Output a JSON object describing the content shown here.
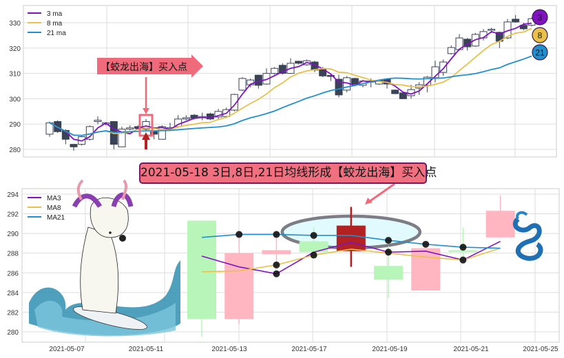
{
  "colors": {
    "ma3": "#8012c0",
    "ma8": "#e8c04a",
    "ma21": "#1f8fcf",
    "candle_down": "#3a4256",
    "candle_up_fill": "#ffffff",
    "highlight": "#ef6b7b",
    "highlight_arrow": "#b22222",
    "bull": "#b8f5b8",
    "bear": "#ffb6c1",
    "signal": "#b22222",
    "ellipse_stroke": "#7d7d85",
    "ellipse_fill": "#e0fafd",
    "banner_fill": "#f07080",
    "banner_border": "#6a1b6a"
  },
  "banner": {
    "text": "2021-05-18 3日,8日,21日均线形成【蛟龙出海】买入点"
  },
  "chart_data": [
    {
      "type": "candlestick",
      "title": "",
      "ylim": [
        277,
        336
      ],
      "yticks": [
        280,
        290,
        300,
        310,
        320,
        330
      ],
      "grid": true,
      "legend": {
        "placement": "top-left",
        "entries": [
          "3 ma",
          "8 ma",
          "21 ma"
        ]
      },
      "end_labels": [
        "3",
        "8",
        "21"
      ],
      "annotation": {
        "text": "【蛟龙出海】买入点",
        "candle_index": 12
      },
      "ma_windows": [
        3,
        8,
        21
      ],
      "ohlc": [
        [
          286,
          290.5,
          291,
          285
        ],
        [
          291,
          287,
          291.5,
          286.5
        ],
        [
          287.5,
          284,
          288,
          282
        ],
        [
          282,
          281,
          282.2,
          279.5
        ],
        [
          282,
          285,
          285.5,
          281.5
        ],
        [
          284,
          289,
          289.5,
          283.5
        ],
        [
          291,
          291.5,
          293,
          290
        ],
        [
          290,
          290.5,
          290.8,
          289.5
        ],
        [
          291,
          282,
          291.2,
          280
        ],
        [
          281,
          288,
          289,
          281
        ],
        [
          288,
          288.5,
          289.5,
          287.5
        ],
        [
          289,
          288.3,
          289.5,
          287.8
        ],
        [
          288,
          291,
          292,
          287
        ],
        [
          287,
          286,
          287.5,
          284
        ],
        [
          284,
          289,
          289.5,
          284
        ],
        [
          288.5,
          288.6,
          290.5,
          287.8
        ],
        [
          289,
          292,
          293.5,
          288.5
        ],
        [
          292,
          292.5,
          293.5,
          291.5
        ],
        [
          293.5,
          292.3,
          294,
          291.8
        ],
        [
          292.5,
          293,
          294.5,
          291.5
        ],
        [
          294,
          292,
          294.5,
          291.5
        ],
        [
          292.8,
          295,
          296,
          292
        ],
        [
          293,
          295.7,
          296.5,
          292.5
        ],
        [
          295.5,
          301.7,
          302,
          295
        ],
        [
          303.4,
          308,
          308.5,
          303
        ],
        [
          305.5,
          307.4,
          308,
          304.5
        ],
        [
          309.3,
          305.3,
          309.5,
          304
        ],
        [
          305.8,
          310,
          312,
          305.5
        ],
        [
          310,
          312,
          312.5,
          309.5
        ],
        [
          313.2,
          310,
          314,
          309.5
        ],
        [
          310,
          314,
          316,
          309.8
        ],
        [
          314.8,
          314,
          315,
          313.5
        ],
        [
          313.4,
          315,
          315.5,
          313
        ],
        [
          314.5,
          311.3,
          315,
          310.5
        ],
        [
          311.8,
          309,
          312.5,
          308.5
        ],
        [
          309.2,
          309,
          309.5,
          307
        ],
        [
          307.7,
          301.5,
          309.5,
          300.5
        ],
        [
          303.4,
          308.3,
          309,
          302.5
        ],
        [
          308,
          305.8,
          308.3,
          305.5
        ],
        [
          305.3,
          307,
          307.5,
          304.5
        ],
        [
          306.8,
          307,
          308,
          304.5
        ],
        [
          305.8,
          307.2,
          307.5,
          305.5
        ],
        [
          307.7,
          305.8,
          308,
          304
        ],
        [
          303.4,
          302,
          303.7,
          301.8
        ],
        [
          302.3,
          300,
          302.5,
          299.8
        ],
        [
          301.2,
          303.6,
          305.5,
          300
        ],
        [
          304.2,
          305.5,
          306.5,
          301.5
        ],
        [
          305.3,
          308.5,
          309,
          302.5
        ],
        [
          308.3,
          312.6,
          315,
          306.5
        ],
        [
          310.4,
          314.5,
          315.5,
          309
        ],
        [
          317.8,
          320.2,
          321,
          317.5
        ],
        [
          319.4,
          324,
          325.5,
          319
        ],
        [
          323.5,
          320.5,
          324,
          319
        ],
        [
          320.8,
          325.4,
          326,
          320.5
        ],
        [
          324,
          326.5,
          327.5,
          323
        ],
        [
          327.3,
          327.4,
          328,
          326
        ],
        [
          326.2,
          322.7,
          326.5,
          320
        ],
        [
          324,
          330.3,
          331.5,
          323.5
        ],
        [
          331.4,
          330.3,
          333,
          330
        ],
        [
          329,
          327.6,
          330,
          327
        ],
        [
          329,
          331.6,
          332,
          328.5
        ]
      ]
    },
    {
      "type": "candlestick",
      "title": "",
      "ylim": [
        279,
        294.6
      ],
      "yticks": [
        280,
        282,
        284,
        286,
        288,
        290,
        292,
        294
      ],
      "xticks": [
        "2021-05-07",
        "2021-05-11",
        "2021-05-13",
        "2021-05-17",
        "2021-05-19",
        "2021-05-21",
        "2021-05-25"
      ],
      "grid": true,
      "legend": {
        "placement": "top-left",
        "entries": [
          "MA3",
          "MA8",
          "MA21"
        ]
      },
      "candles": [
        {
          "top": 291.3,
          "bottom": 281.3,
          "high": 291.3,
          "low": 279.5,
          "color": "bull"
        },
        {
          "top": 288.0,
          "bottom": 281.3,
          "high": 289.9,
          "low": 280.8,
          "color": "bear"
        },
        {
          "top": 288.3,
          "bottom": 287.9,
          "high": 290.1,
          "low": 286.7,
          "color": "bear"
        },
        {
          "top": 289.2,
          "bottom": 288.1,
          "high": 290.6,
          "low": 288.1,
          "color": "bull"
        },
        {
          "top": 290.8,
          "bottom": 288.2,
          "high": 292.7,
          "low": 286.6,
          "color": "signal"
        },
        {
          "top": 286.7,
          "bottom": 285.3,
          "high": 288.7,
          "low": 283.4,
          "color": "bull"
        },
        {
          "top": 288.5,
          "bottom": 284.2,
          "high": 288.5,
          "low": 284.2,
          "color": "bear"
        },
        {
          "top": 288.3,
          "bottom": 288.1,
          "high": 290.6,
          "low": 287.3,
          "color": "bull"
        },
        {
          "top": 292.3,
          "bottom": 289.6,
          "high": 293.9,
          "low": 289.6,
          "color": "bear"
        }
      ],
      "series": [
        {
          "name": "MA3",
          "values": [
            287.7,
            286.6,
            285.9,
            288.1,
            289.1,
            288.1,
            288.2,
            287.3,
            289.2
          ]
        },
        {
          "name": "MA8",
          "values": [
            286.1,
            286.2,
            286.8,
            287.8,
            288.4,
            288.0,
            287.6,
            287.3,
            288.5
          ]
        },
        {
          "name": "MA21",
          "values": [
            289.6,
            289.9,
            289.9,
            289.8,
            289.8,
            289.3,
            288.9,
            288.6,
            288.5
          ]
        }
      ],
      "markers": [
        [
          "MA21",
          1
        ],
        [
          "MA21",
          2
        ],
        [
          "MA8",
          2
        ],
        [
          "MA3",
          2
        ],
        [
          "MA8",
          3
        ],
        [
          "MA21",
          3
        ],
        [
          "MA3",
          5
        ],
        [
          "MA21",
          5
        ],
        [
          "MA21",
          6
        ],
        [
          "MA21",
          7
        ],
        [
          "MA3",
          7
        ]
      ],
      "highlight_index": 4
    }
  ]
}
